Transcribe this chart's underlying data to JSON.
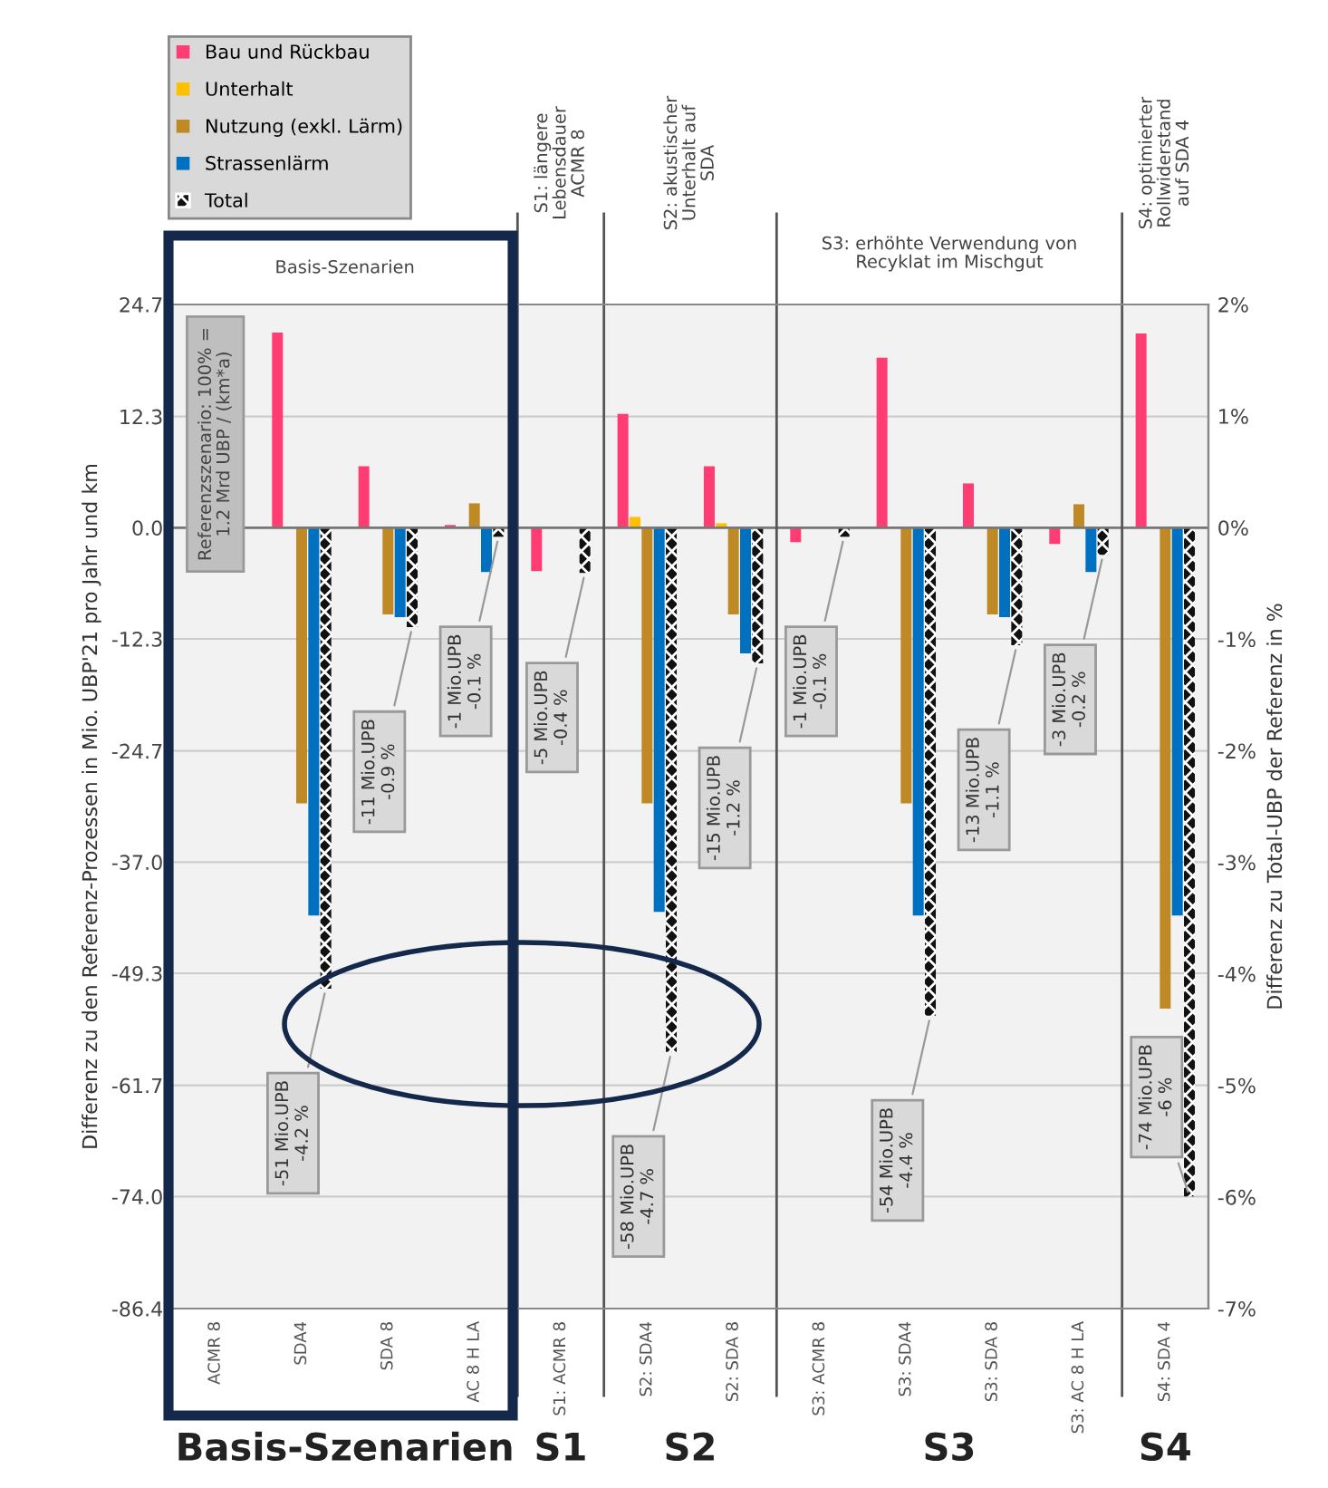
{
  "chart_data": {
    "type": "bar",
    "ylabel": "Differenz zu den Referenz-Prozessen in Mio. UBP'21 pro Jahr und km",
    "y2label": "Differenz zu Total-UBP der Referenz in %",
    "categories": [
      "ACMR 8",
      "SDA4",
      "SDA 8",
      "AC 8 H LA",
      "S1: ACMR 8",
      "S2: SDA4",
      "S2: SDA 8",
      "S3: ACMR 8",
      "S3: SDA4",
      "S3: SDA 8",
      "S3: AC 8 H LA",
      "S4: SDA 4"
    ],
    "series": [
      {
        "name": "Bau und Rückbau",
        "color": "#ff3d73",
        "values": [
          0,
          21.6,
          6.8,
          0.3,
          -4.8,
          12.6,
          6.8,
          -1.6,
          18.8,
          4.9,
          -1.8,
          21.5
        ]
      },
      {
        "name": "Unterhalt",
        "color": "#ffc000",
        "values": [
          0,
          0,
          0,
          0,
          0,
          1.2,
          0.5,
          0,
          0,
          0,
          0,
          0
        ]
      },
      {
        "name": "Nutzung (exkl. Lärm)",
        "color": "#bf8a26",
        "values": [
          0,
          -30.5,
          -9.6,
          2.7,
          0,
          -30.5,
          -9.6,
          0,
          -30.5,
          -9.6,
          2.6,
          -53.2
        ]
      },
      {
        "name": "Strassenlärm",
        "color": "#0070c0",
        "values": [
          0,
          -42.9,
          -9.9,
          -4.9,
          0,
          -42.5,
          -13.9,
          0,
          -42.9,
          -9.9,
          -4.9,
          -42.9
        ]
      },
      {
        "name": "Total",
        "color": "#111111",
        "values": [
          0,
          -51,
          -11,
          -1,
          -5,
          -58,
          -15,
          -1,
          -54,
          -13,
          -3,
          -74
        ],
        "value_labels": [
          null,
          "-51 Mio.UPB\n-4.2 %",
          "-11 Mio.UPB\n-0.9 %",
          "-1 Mio.UPB\n-0.1 %",
          "-5 Mio.UPB\n-0.4 %",
          "-58 Mio.UPB\n-4.7 %",
          "-15 Mio.UPB\n-1.2 %",
          "-1 Mio.UPB\n-0.1 %",
          "-54 Mio.UPB\n-4.4 %",
          "-13 Mio.UPB\n-1.1 %",
          "-3 Mio.UPB\n-0.2 %",
          "-74 Mio.UPB\n-6 %"
        ]
      }
    ],
    "ylim": [
      -86.4,
      24.7
    ],
    "yticks": [
      24.7,
      12.3,
      {
        "value": 0,
        "label": "0.0"
      },
      -12.3,
      -24.7,
      {
        "value": -37,
        "label": "-37.0"
      },
      -49.3,
      -61.7,
      {
        "value": -74,
        "label": "-74.0"
      },
      -86.4
    ],
    "y2lim": [
      -7,
      2
    ],
    "y2ticks": [
      {
        "value": 2,
        "label": "2%"
      },
      {
        "value": 1,
        "label": "1%"
      },
      {
        "value": 0,
        "label": "0%"
      },
      {
        "value": -1,
        "label": "-1%"
      },
      {
        "value": -2,
        "label": "-2%"
      },
      {
        "value": -3,
        "label": "-3%"
      },
      {
        "value": -4,
        "label": "-4%"
      },
      {
        "value": -5,
        "label": "-5%"
      },
      {
        "value": -6,
        "label": "-6%"
      },
      {
        "value": -7,
        "label": "-7%"
      }
    ],
    "annotations": [
      "Referenzszenario: 100% =\n1.2 Mrd UBP / (km*a)",
      "Basis-Szenarien",
      "S1: längere\nLebensdauer\nACMR 8",
      "S2: akustischer\nUnterhalt auf\nSDA",
      "S3: erhöhte Verwendung von\nRecyklat im Mischgut",
      "S4: optimierter\nRollwiderstand\nauf SDA 4",
      "Basis-Szenarien",
      "S1",
      "S2",
      "S3",
      "S4"
    ],
    "grid": true,
    "legend": "top left"
  }
}
